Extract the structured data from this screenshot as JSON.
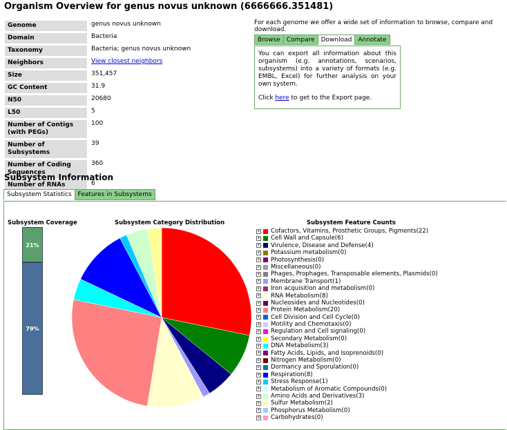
{
  "page": {
    "title": "Organism Overview for genus novus unknown (6666666.351481)"
  },
  "info": [
    {
      "label": "Genome",
      "value": "genus novus unknown"
    },
    {
      "label": "Domain",
      "value": "Bacteria"
    },
    {
      "label": "Taxonomy",
      "value": "Bacteria; genus novus unknown"
    },
    {
      "label": "Neighbors",
      "value": "View closest neighbors",
      "link": true
    },
    {
      "label": "Size",
      "value": "351,457"
    },
    {
      "label": "GC Content",
      "value": "31.9"
    },
    {
      "label": "N50",
      "value": "20680"
    },
    {
      "label": "L50",
      "value": "5"
    },
    {
      "label": "Number of Contigs (with PEGs)",
      "value": "100"
    },
    {
      "label": "Number of Subsystems",
      "value": "39"
    },
    {
      "label": "Number of Coding Sequences",
      "value": "360"
    },
    {
      "label": "Number of RNAs",
      "value": "6"
    }
  ],
  "actions": {
    "intro": "For each genome we offer a wide set of information to browse, compare and download.",
    "tabs": [
      "Browse",
      "Compare",
      "Download",
      "Annotate"
    ],
    "active_tab": "Download",
    "panel_text": "You can export all information about this organism (e.g. annotations, scenarios, subsystems) into a variety of formats (e.g. EMBL, Excel) for further analysis on your own system.",
    "click_prefix": "Click ",
    "click_link": "here",
    "click_suffix": " to get to the Export page."
  },
  "subsystem": {
    "heading": "Subsystem Information",
    "tabs": [
      "Subsystem Statistics",
      "Features in Subsystems"
    ],
    "coverage_title": "Subsystem Coverage",
    "coverage_in_pct": 21,
    "coverage_out_pct": 79,
    "coverage_in_label": "21%",
    "coverage_out_label": "79%",
    "pie_title": "Subsystem Category Distribution",
    "counts_title": "Subsystem Feature Counts",
    "expand_symbol": "+"
  },
  "chart_data": {
    "type": "pie",
    "title": "Subsystem Category Distribution",
    "slices": [
      {
        "name": "Cofactors, Vitamins, Prosthetic Groups, Pigments",
        "value": 22,
        "color": "#ff0000"
      },
      {
        "name": "Cell Wall and Capsule",
        "value": 6,
        "color": "#008000"
      },
      {
        "name": "Virulence, Disease and Defense",
        "value": 4,
        "color": "#000080"
      },
      {
        "name": "Potassium metabolism",
        "value": 0,
        "color": "#808000"
      },
      {
        "name": "Photosynthesis",
        "value": 0,
        "color": "#800080"
      },
      {
        "name": "Miscellaneous",
        "value": 0,
        "color": "#a0a0a0"
      },
      {
        "name": "Phages, Prophages, Transposable elements, Plasmids",
        "value": 0,
        "color": "#808080"
      },
      {
        "name": "Membrane Transport",
        "value": 1,
        "color": "#9999ff"
      },
      {
        "name": "Iron acquisition and metabolism",
        "value": 0,
        "color": "#993366"
      },
      {
        "name": "RNA Metabolism",
        "value": 8,
        "color": "#ffffcc"
      },
      {
        "name": "Nucleosides and Nucleotides",
        "value": 0,
        "color": "#660066"
      },
      {
        "name": "Protein Metabolism",
        "value": 20,
        "color": "#ff8080"
      },
      {
        "name": "Cell Division and Cell Cycle",
        "value": 0,
        "color": "#0066cc"
      },
      {
        "name": "Motility and Chemotaxis",
        "value": 0,
        "color": "#ccccff"
      },
      {
        "name": "Regulation and Cell signaling",
        "value": 0,
        "color": "#ff00ff"
      },
      {
        "name": "Secondary Metabolism",
        "value": 0,
        "color": "#ffff00"
      },
      {
        "name": "DNA Metabolism",
        "value": 3,
        "color": "#00ffff"
      },
      {
        "name": "Fatty Acids, Lipids, and Isoprenoids",
        "value": 0,
        "color": "#800080"
      },
      {
        "name": "Nitrogen Metabolism",
        "value": 0,
        "color": "#800000"
      },
      {
        "name": "Dormancy and Sporulation",
        "value": 0,
        "color": "#008080"
      },
      {
        "name": "Respiration",
        "value": 8,
        "color": "#0000ff"
      },
      {
        "name": "Stress Response",
        "value": 1,
        "color": "#00ccff"
      },
      {
        "name": "Metabolism of Aromatic Compounds",
        "value": 0,
        "color": "#ccffff"
      },
      {
        "name": "Amino Acids and Derivatives",
        "value": 3,
        "color": "#ccffcc"
      },
      {
        "name": "Sulfur Metabolism",
        "value": 2,
        "color": "#ffff99"
      },
      {
        "name": "Phosphorus Metabolism",
        "value": 0,
        "color": "#99ccff"
      },
      {
        "name": "Carbohydrates",
        "value": 0,
        "color": "#ff99cc"
      }
    ]
  }
}
